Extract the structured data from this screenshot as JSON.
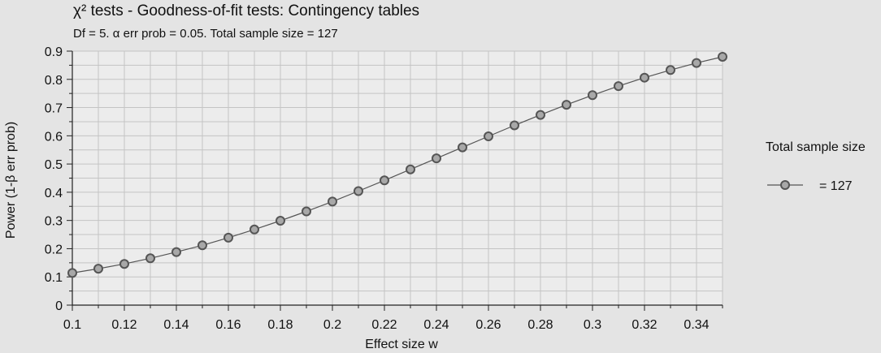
{
  "chart_data": {
    "type": "line",
    "title": "χ² tests - Goodness-of-fit tests: Contingency tables",
    "subtitle": "Df = 5. α err prob = 0.05. Total sample size = 127",
    "xlabel": "Effect size w",
    "ylabel": "Power (1-β err prob)",
    "xlim": [
      0.1,
      0.35
    ],
    "ylim": [
      0,
      0.9
    ],
    "x_ticks": [
      "0.1",
      "0.12",
      "0.14",
      "0.16",
      "0.18",
      "0.2",
      "0.22",
      "0.24",
      "0.26",
      "0.28",
      "0.3",
      "0.32",
      "0.34"
    ],
    "y_ticks": [
      "0",
      "0.1",
      "0.2",
      "0.3",
      "0.4",
      "0.5",
      "0.6",
      "0.7",
      "0.8",
      "0.9"
    ],
    "grid": true,
    "legend_position": "right",
    "legend_title": "Total sample size",
    "series": [
      {
        "name": "= 127",
        "color": "#555555",
        "x": [
          0.1,
          0.11,
          0.12,
          0.13,
          0.14,
          0.15,
          0.16,
          0.17,
          0.18,
          0.19,
          0.2,
          0.21,
          0.22,
          0.23,
          0.24,
          0.25,
          0.26,
          0.27,
          0.28,
          0.29,
          0.3,
          0.31,
          0.32,
          0.33,
          0.34,
          0.35
        ],
        "values": [
          0.114,
          0.129,
          0.146,
          0.166,
          0.188,
          0.212,
          0.239,
          0.268,
          0.299,
          0.332,
          0.367,
          0.404,
          0.442,
          0.481,
          0.52,
          0.559,
          0.598,
          0.637,
          0.674,
          0.71,
          0.744,
          0.776,
          0.806,
          0.833,
          0.858,
          0.88
        ]
      }
    ]
  }
}
